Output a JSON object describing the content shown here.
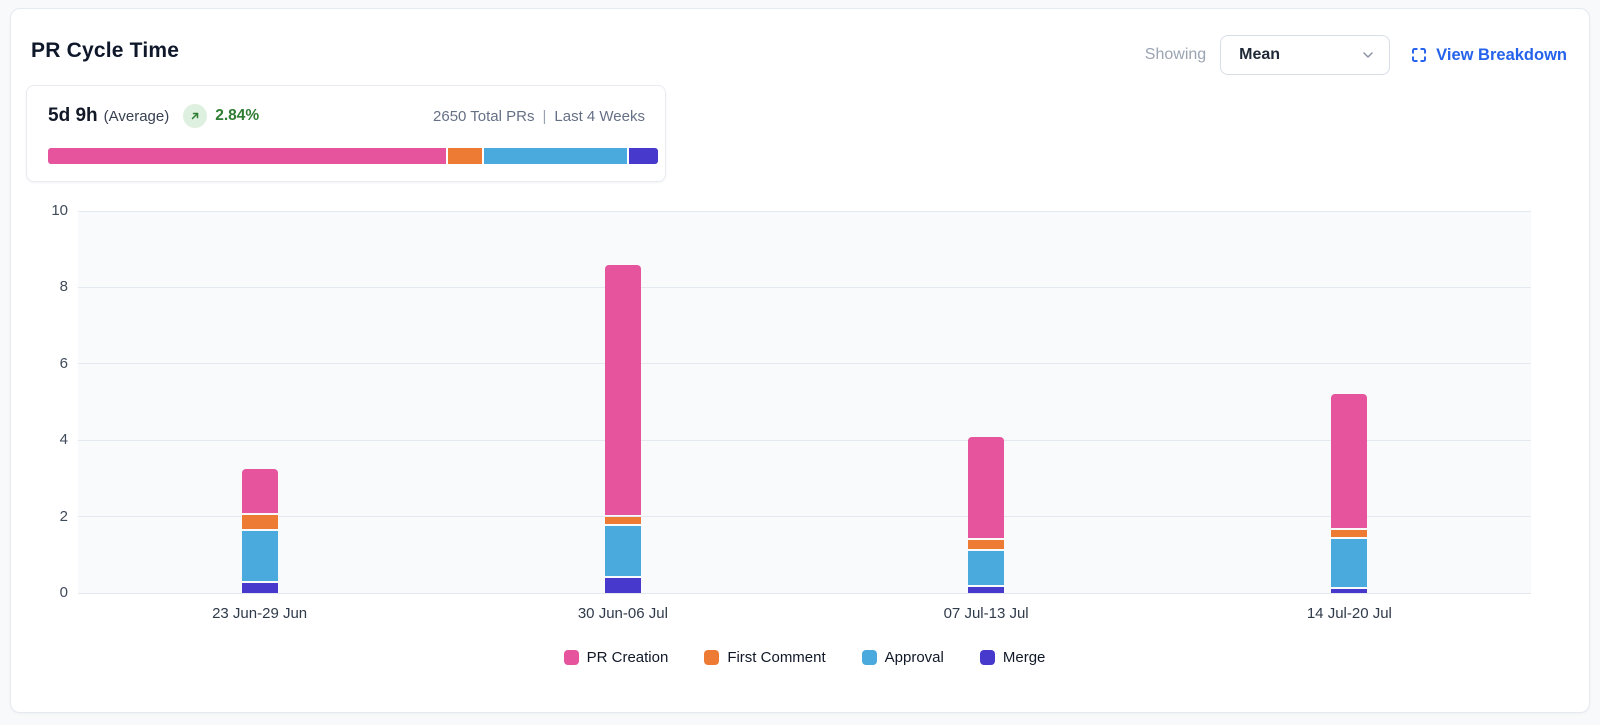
{
  "header": {
    "title": "PR Cycle Time",
    "showing_label": "Showing",
    "metric_dropdown": {
      "value": "Mean"
    },
    "view_breakdown_label": "View Breakdown"
  },
  "summary": {
    "value": "5d 9h",
    "qualifier": "(Average)",
    "trend_icon": "arrow-up-right",
    "change_pct": "2.84%",
    "total_prs": "2650 Total PRs",
    "separator": "|",
    "period": "Last 4 Weeks",
    "distribution": [
      {
        "name": "PR Creation",
        "pct": 65.2,
        "color": "#e5549c"
      },
      {
        "name": "First Comment",
        "pct": 5.7,
        "color": "#ee7b33"
      },
      {
        "name": "Approval",
        "pct": 23.3,
        "color": "#4aa9dd"
      },
      {
        "name": "Merge",
        "pct": 5.8,
        "color": "#4639cc"
      }
    ]
  },
  "colors": {
    "pr_creation": "#e5549c",
    "first_comment": "#ee7b33",
    "approval": "#4aa9dd",
    "merge": "#4639cc",
    "positive_green": "#2e7d32",
    "link_blue": "#2563eb",
    "plot_background": "#f8fafc",
    "gridline": "#e4e9f0"
  },
  "chart_data": {
    "type": "bar",
    "stacked": true,
    "title": "PR Cycle Time",
    "xlabel": "",
    "ylabel": "",
    "categories": [
      "23 Jun-29 Jun",
      "30 Jun-06 Jul",
      "07 Jul-13 Jul",
      "14 Jul-20 Jul"
    ],
    "series": [
      {
        "name": "PR Creation",
        "color": "#e5549c",
        "values": [
          1.2,
          6.6,
          2.7,
          3.55
        ]
      },
      {
        "name": "First Comment",
        "color": "#ee7b33",
        "values": [
          0.42,
          0.25,
          0.28,
          0.25
        ]
      },
      {
        "name": "Approval",
        "color": "#4aa9dd",
        "values": [
          1.35,
          1.35,
          0.95,
          1.3
        ]
      },
      {
        "name": "Merge",
        "color": "#4639cc",
        "values": [
          0.32,
          0.45,
          0.2,
          0.16
        ]
      }
    ],
    "stack_order_bottom_to_top": [
      "Merge",
      "Approval",
      "First Comment",
      "PR Creation"
    ],
    "totals": [
      3.29,
      8.65,
      4.13,
      5.26
    ],
    "ylim": [
      0,
      10
    ],
    "yticks": [
      0,
      2,
      4,
      6,
      8,
      10
    ],
    "grid": true,
    "legend_position": "bottom"
  }
}
